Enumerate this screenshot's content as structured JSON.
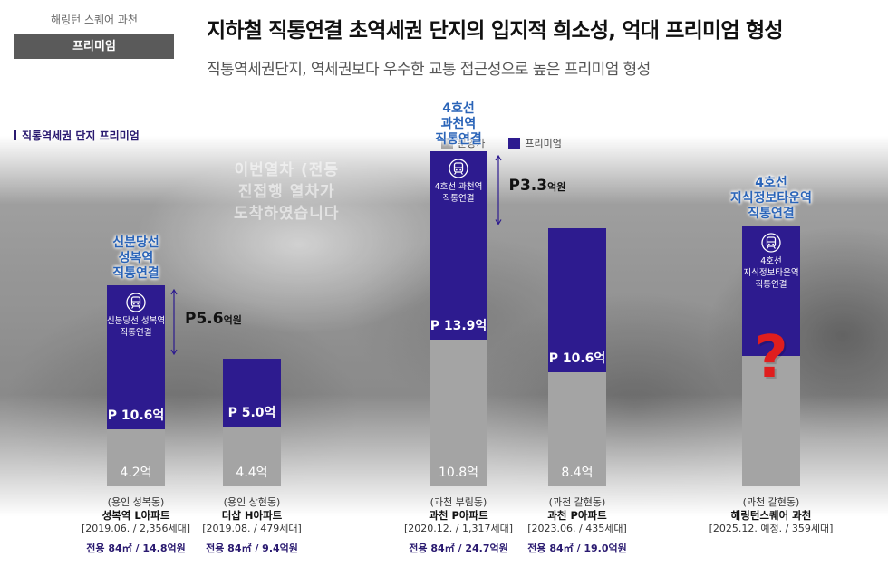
{
  "header": {
    "site_name": "해링턴 스퀘어 과천",
    "tag": "프리미엄",
    "title": "지하철 직통연결 초역세권 단지의 입지적 희소성, 억대 프리미엄 형성",
    "subtitle": "직통역세권단지, 역세권보다 우수한 교통 접근성으로 높은 프리미엄 형성"
  },
  "section_label": "직통역세권 단지 프리미엄",
  "background_sign": [
    "이번열차 (전동",
    "진접행 열차가",
    "도착하였습니다"
  ],
  "colors": {
    "sale_price": "#a4a4a4",
    "premium": "#2d1b8f",
    "station": "#2a64b8",
    "question": "#e01e1e"
  },
  "chart_data": {
    "type": "bar",
    "stacked": true,
    "units": "억",
    "legend": [
      {
        "key": "base",
        "label": "분양가",
        "color": "#a4a4a4"
      },
      {
        "key": "premium",
        "label": "프리미엄",
        "color": "#2d1b8f"
      }
    ],
    "bars": [
      {
        "location": "(용인 성복동)",
        "name": "성복역 L아파트",
        "meta": "[2019.06. / 2,356세대]",
        "price": "전용 84㎡ / 14.8억원",
        "base": 4.2,
        "base_label": "4.2억",
        "premium": 10.6,
        "premium_label": "P 10.6억",
        "station_label": [
          "신분당선",
          "성복역",
          "직통연결"
        ],
        "inner_label": [
          "신분당선 성복역",
          "직통연결"
        ],
        "metro_icon": "metro-train-icon"
      },
      {
        "location": "(용인 상현동)",
        "name": "더샵 H아파트",
        "meta": "[2019.08. / 479세대]",
        "price": "전용 84㎡ / 9.4억원",
        "base": 4.4,
        "base_label": "4.4억",
        "premium": 5.0,
        "premium_label": "P 5.0억"
      },
      {
        "location": "(과천 부림동)",
        "name": "과천 P아파트",
        "meta": "[2020.12. / 1,317세대]",
        "price": "전용 84㎡ / 24.7억원",
        "base": 10.8,
        "base_label": "10.8억",
        "premium": 13.9,
        "premium_label": "P 13.9억",
        "station_label": [
          "4호선",
          "과천역",
          "직통연결"
        ],
        "inner_label": [
          "4호선 과천역",
          "직통연결"
        ],
        "metro_icon": "metro-train-icon"
      },
      {
        "location": "(과천 갈현동)",
        "name": "과천 P아파트",
        "meta": "[2023.06. / 435세대]",
        "price": "전용 84㎡ / 19.0억원",
        "base": 8.4,
        "base_label": "8.4억",
        "premium": 10.6,
        "premium_label": "P 10.6억"
      },
      {
        "location": "(과천 갈현동)",
        "name": "해링턴스퀘어 과천",
        "meta": "[2025.12. 예정. / 359세대]",
        "price": "",
        "base": 9.6,
        "base_label": "",
        "premium": 9.6,
        "premium_label": "",
        "unknown_premium": true,
        "question_mark": "?",
        "station_label": [
          "4호선",
          "지식정보타운역",
          "직통연결"
        ],
        "inner_label": [
          "4호선",
          "지식정보타운역",
          "직통연결"
        ],
        "metro_icon": "metro-train-icon"
      }
    ],
    "differences": [
      {
        "between": [
          0,
          1
        ],
        "label": "P5.6",
        "unit": "억원"
      },
      {
        "between": [
          2,
          3
        ],
        "label": "P3.3",
        "unit": "억원"
      }
    ]
  }
}
